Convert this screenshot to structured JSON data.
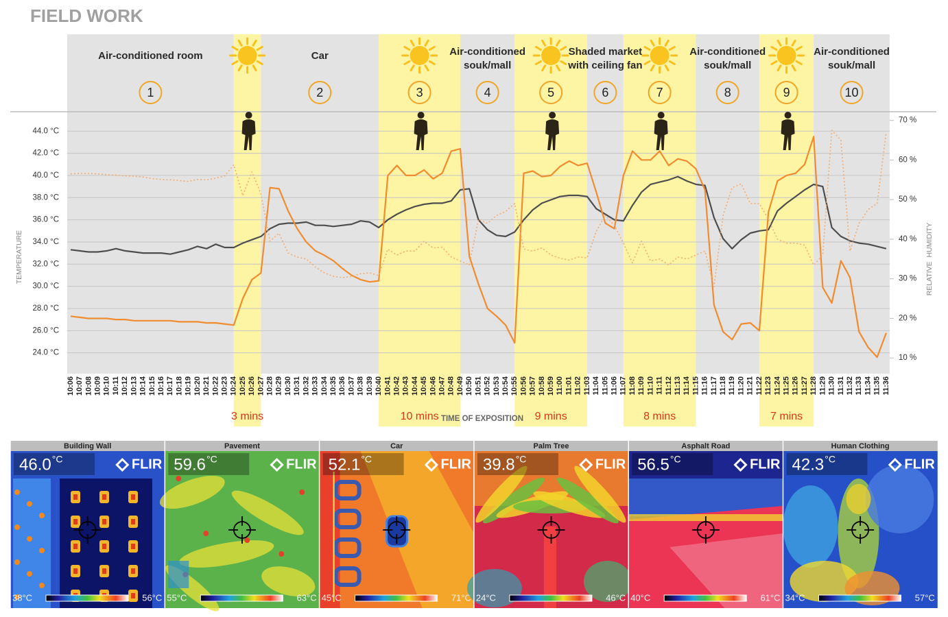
{
  "header": {
    "title": "FIELD WORK"
  },
  "chart_data": {
    "type": "line",
    "xlabel": "TIME OF EXPOSITION",
    "ylabel": "TEMPERATURE",
    "y2label": "RELATIVE  HUMIDITY",
    "grid": true,
    "categories": [
      "10:06",
      "10:07",
      "10:08",
      "10:09",
      "10:10",
      "10:11",
      "10:12",
      "10:13",
      "10:14",
      "10:15",
      "10:16",
      "10:17",
      "10:18",
      "10:19",
      "10:20",
      "10:21",
      "10:22",
      "10:23",
      "10:24",
      "10:25",
      "10:26",
      "10:27",
      "10:28",
      "10:29",
      "10:30",
      "10:31",
      "10:32",
      "10:33",
      "10:34",
      "10:35",
      "10:36",
      "10:37",
      "10:38",
      "10:39",
      "10:40",
      "10:41",
      "10:42",
      "10:43",
      "10:44",
      "10:45",
      "10:46",
      "10:47",
      "10:48",
      "10:49",
      "10:50",
      "10:51",
      "10:52",
      "10:53",
      "10:54",
      "10:55",
      "10:56",
      "10:57",
      "10:58",
      "10:59",
      "11:00",
      "11:01",
      "11:02",
      "11:03",
      "11:04",
      "11:05",
      "11:06",
      "11:07",
      "11:08",
      "11:09",
      "11:10",
      "11:11",
      "11:12",
      "11:13",
      "11:14",
      "11:15",
      "11:16",
      "11:17",
      "11:18",
      "11:19",
      "11:20",
      "11:21",
      "11:22",
      "11:23",
      "11:24",
      "11:25",
      "11:26",
      "11:27",
      "11:28",
      "11:29",
      "11:30",
      "11:31",
      "11:32",
      "11:33",
      "11:34",
      "11:35",
      "11:36"
    ],
    "series": [
      {
        "color": "#4d4d4d",
        "values": [
          33.3,
          33.2,
          33.1,
          33.1,
          33.2,
          33.4,
          33.2,
          33.1,
          33.0,
          33.0,
          33.0,
          32.9,
          33.1,
          33.3,
          33.6,
          33.4,
          33.8,
          33.5,
          33.5,
          33.9,
          34.2,
          34.5,
          35.2,
          35.6,
          35.7,
          35.7,
          35.8,
          35.5,
          35.5,
          35.4,
          35.5,
          35.6,
          35.9,
          35.8,
          35.3,
          36.0,
          36.5,
          36.9,
          37.2,
          37.4,
          37.5,
          37.5,
          37.7,
          38.7,
          38.8,
          36.0,
          35.1,
          34.6,
          34.5,
          34.9,
          36.0,
          36.9,
          37.5,
          37.8,
          38.1,
          38.2,
          38.2,
          38.1,
          37.0,
          36.5,
          36.0,
          35.9,
          37.3,
          38.5,
          39.2,
          39.4,
          39.6,
          39.9,
          39.5,
          39.2,
          39.1,
          36.2,
          34.3,
          33.4,
          34.2,
          34.8,
          35.0,
          35.1,
          36.8,
          37.5,
          38.1,
          38.7,
          39.2,
          39.0,
          35.3,
          34.5,
          34.1,
          33.9,
          33.8,
          33.6,
          33.4
        ]
      },
      {
        "color": "#f08c2e",
        "values": [
          27.3,
          27.2,
          27.1,
          27.1,
          27.1,
          27.0,
          27.0,
          26.9,
          26.9,
          26.9,
          26.9,
          26.9,
          26.8,
          26.8,
          26.8,
          26.7,
          26.7,
          26.6,
          26.5,
          28.9,
          30.6,
          31.2,
          38.9,
          38.8,
          36.8,
          35.2,
          34.0,
          33.2,
          32.8,
          32.3,
          31.6,
          31.0,
          30.6,
          30.4,
          30.5,
          40.0,
          40.9,
          40.0,
          40.0,
          40.5,
          39.7,
          40.2,
          42.2,
          42.4,
          32.7,
          30.2,
          28.0,
          27.3,
          26.5,
          24.9,
          40.2,
          40.4,
          39.9,
          40.0,
          40.8,
          41.3,
          40.9,
          41.1,
          38.5,
          35.7,
          35.2,
          40.0,
          42.2,
          41.4,
          41.4,
          42.2,
          40.9,
          41.5,
          41.3,
          40.6,
          38.7,
          28.3,
          25.9,
          25.2,
          26.6,
          26.7,
          26.0,
          36.7,
          39.5,
          40.0,
          40.2,
          41.0,
          43.5,
          29.9,
          28.5,
          32.3,
          30.8,
          25.9,
          24.5,
          23.6,
          25.8
        ]
      },
      {
        "color": "#f3ad72",
        "axis": "y2",
        "line_style": "dotted",
        "values": [
          56.5,
          56.6,
          56.6,
          56.5,
          56.3,
          56.2,
          56.0,
          55.9,
          55.7,
          55.3,
          55.1,
          55.0,
          54.8,
          54.6,
          55.1,
          55.0,
          55.4,
          56.0,
          58.8,
          51.0,
          57.0,
          51.5,
          39.5,
          41.5,
          36.5,
          35.5,
          35.0,
          33.0,
          31.5,
          30.6,
          30.3,
          30.6,
          31.3,
          31.5,
          30.8,
          37.5,
          36.0,
          37.0,
          37.0,
          39.5,
          37.8,
          38.0,
          35.5,
          34.5,
          33.5,
          45.0,
          44.0,
          46.0,
          47.0,
          49.0,
          37.5,
          37.0,
          37.8,
          36.0,
          35.2,
          34.7,
          35.5,
          35.3,
          42.0,
          46.0,
          43.5,
          39.0,
          34.0,
          39.5,
          34.5,
          35.0,
          33.5,
          35.5,
          35.0,
          36.0,
          37.0,
          28.0,
          46.0,
          53.0,
          54.0,
          49.0,
          49.0,
          45.0,
          40.0,
          39.0,
          39.0,
          38.5,
          33.5,
          36.0,
          67.5,
          65.0,
          37.0,
          44.0,
          47.5,
          49.0,
          67.0
        ]
      }
    ],
    "ylim": [
      22,
      45.5
    ],
    "yticks": [
      {
        "value": 24,
        "label": "24.0 °C"
      },
      {
        "value": 26,
        "label": "26.0 °C"
      },
      {
        "value": 28,
        "label": "28.0 °C"
      },
      {
        "value": 30,
        "label": "30.0 °C"
      },
      {
        "value": 32,
        "label": "32.0 °C"
      },
      {
        "value": 34,
        "label": "34.0 °C"
      },
      {
        "value": 36,
        "label": "36.0 °C"
      },
      {
        "value": 38,
        "label": "38.0 °C"
      },
      {
        "value": 40,
        "label": "40.0 °C"
      },
      {
        "value": 42,
        "label": "42.0 °C"
      },
      {
        "value": 44,
        "label": "44.0 °C"
      }
    ],
    "y2lim": [
      5.7,
      71.5
    ],
    "y2ticks": [
      {
        "value": 10,
        "label": "10 %"
      },
      {
        "value": 20,
        "label": "20 %"
      },
      {
        "value": 30,
        "label": "30 %"
      },
      {
        "value": 40,
        "label": "40 %"
      },
      {
        "value": 50,
        "label": "50 %"
      },
      {
        "value": 60,
        "label": "60 %"
      },
      {
        "value": 70,
        "label": "70 %"
      }
    ],
    "zone_colors": {
      "indoor": "#e3e3e3",
      "outdoor": "#fdf4a4"
    },
    "zones": [
      {
        "start": "10:06",
        "end": "10:24",
        "kind": "indoor",
        "number": "1",
        "label": [
          "Air-conditioned room"
        ]
      },
      {
        "start": "10:24",
        "end": "10:27",
        "kind": "outdoor",
        "duration": "3 mins"
      },
      {
        "start": "10:27",
        "end": "10:40",
        "kind": "indoor",
        "number": "2",
        "label": [
          "Car"
        ]
      },
      {
        "start": "10:40",
        "end": "10:49",
        "kind": "outdoor",
        "number": "3",
        "duration": "10 mins"
      },
      {
        "start": "10:49",
        "end": "10:55",
        "kind": "indoor",
        "number": "4",
        "label": [
          "Air-conditioned",
          "souk/mall"
        ]
      },
      {
        "start": "10:55",
        "end": "11:03",
        "kind": "outdoor",
        "number": "5",
        "duration": "9 mins"
      },
      {
        "start": "11:03",
        "end": "11:07",
        "kind": "indoor",
        "number": "6",
        "label": [
          "Shaded market",
          "with ceiling fan"
        ]
      },
      {
        "start": "11:07",
        "end": "11:15",
        "kind": "outdoor",
        "number": "7",
        "duration": "8 mins"
      },
      {
        "start": "11:15",
        "end": "11:22",
        "kind": "indoor",
        "number": "8",
        "label": [
          "Air-conditioned",
          "souk/mall"
        ]
      },
      {
        "start": "11:22",
        "end": "11:28",
        "kind": "outdoor",
        "number": "9",
        "duration": "7 mins"
      },
      {
        "start": "11:28",
        "end": "11:36",
        "kind": "indoor",
        "number": "10",
        "label": [
          "Air-conditioned",
          "souk/mall"
        ]
      }
    ]
  },
  "thermal_images": [
    {
      "title": "Building Wall",
      "reading": "46.0",
      "unit": "°C",
      "brand": "FLIR",
      "scale_min": "38°C",
      "scale_max": "56°C"
    },
    {
      "title": "Pavement",
      "reading": "59.6",
      "unit": "°C",
      "brand": "FLIR",
      "scale_min": "55°C",
      "scale_max": "63°C"
    },
    {
      "title": "Car",
      "reading": "52.1",
      "unit": "°C",
      "brand": "FLIR",
      "scale_min": "45°C",
      "scale_max": "71°C"
    },
    {
      "title": "Palm Tree",
      "reading": "39.8",
      "unit": "°C",
      "brand": "FLIR",
      "scale_min": "24°C",
      "scale_max": "46°C"
    },
    {
      "title": "Asphalt Road",
      "reading": "56.5",
      "unit": "°C",
      "brand": "FLIR",
      "scale_min": "40°C",
      "scale_max": "61°C"
    },
    {
      "title": "Human Clothing",
      "reading": "42.3",
      "unit": "°C",
      "brand": "FLIR",
      "scale_min": "34°C",
      "scale_max": "57°C"
    }
  ]
}
